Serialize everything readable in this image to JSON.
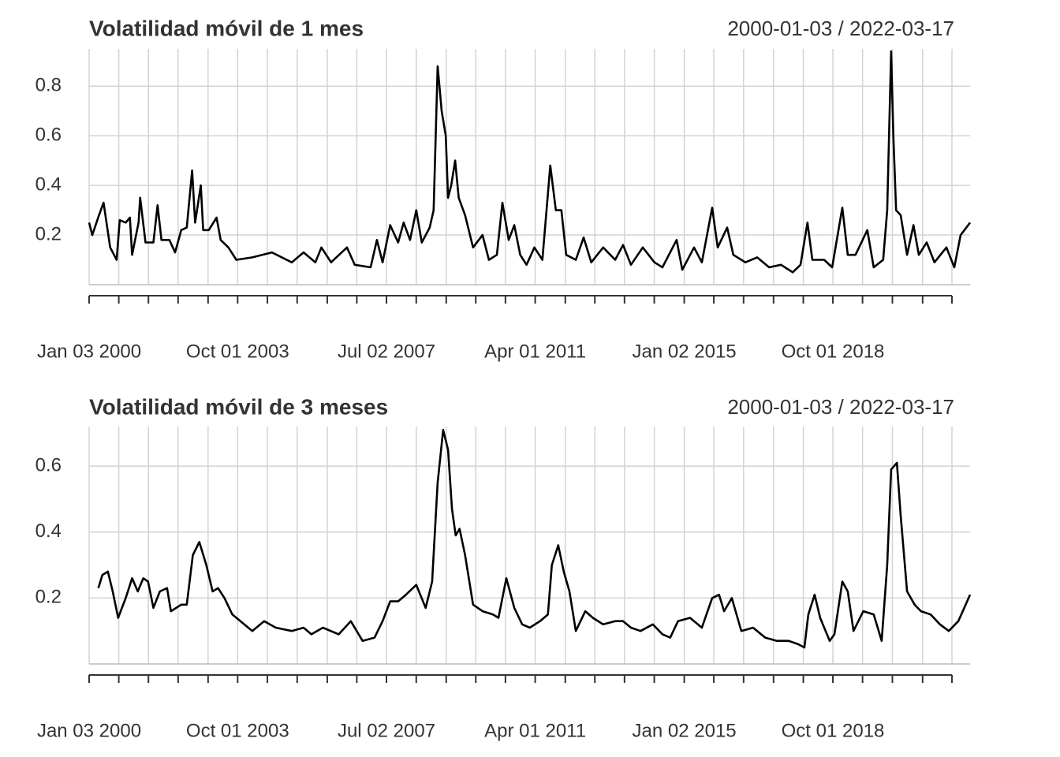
{
  "chart_data": [
    {
      "type": "line",
      "title": "Volatilidad móvil de 1 mes",
      "date_range": "2000-01-03 / 2022-03-17",
      "color": "#000000",
      "grid": true,
      "xlim": [
        "2000-01-03",
        "2022-03-17"
      ],
      "ylim": [
        0,
        0.95
      ],
      "yticks": [
        0.2,
        0.4,
        0.6,
        0.8
      ],
      "xticks": [
        {
          "value": "2000-01-03",
          "label": "Jan 03 2000"
        },
        {
          "value": "2000-10-02",
          "label": null
        },
        {
          "value": "2001-07-02",
          "label": null
        },
        {
          "value": "2002-04-01",
          "label": null
        },
        {
          "value": "2003-01-02",
          "label": null
        },
        {
          "value": "2003-10-01",
          "label": "Oct 01 2003"
        },
        {
          "value": "2004-07-01",
          "label": null
        },
        {
          "value": "2005-04-01",
          "label": null
        },
        {
          "value": "2006-01-03",
          "label": null
        },
        {
          "value": "2006-10-02",
          "label": null
        },
        {
          "value": "2007-07-02",
          "label": "Jul 02 2007"
        },
        {
          "value": "2008-04-01",
          "label": null
        },
        {
          "value": "2009-01-02",
          "label": null
        },
        {
          "value": "2009-10-01",
          "label": null
        },
        {
          "value": "2010-07-01",
          "label": null
        },
        {
          "value": "2011-04-01",
          "label": "Apr 01 2011"
        },
        {
          "value": "2012-01-03",
          "label": null
        },
        {
          "value": "2012-10-01",
          "label": null
        },
        {
          "value": "2013-07-01",
          "label": null
        },
        {
          "value": "2014-04-01",
          "label": null
        },
        {
          "value": "2015-01-02",
          "label": "Jan 02 2015"
        },
        {
          "value": "2015-10-01",
          "label": null
        },
        {
          "value": "2016-07-01",
          "label": null
        },
        {
          "value": "2017-04-03",
          "label": null
        },
        {
          "value": "2018-01-02",
          "label": null
        },
        {
          "value": "2018-10-01",
          "label": "Oct 01 2018"
        },
        {
          "value": "2019-07-01",
          "label": null
        },
        {
          "value": "2020-04-01",
          "label": null
        },
        {
          "value": "2021-01-04",
          "label": null
        },
        {
          "value": "2021-10-01",
          "label": null
        }
      ],
      "x": [
        "2000-01-03",
        "2000-02-01",
        "2000-04-03",
        "2000-05-15",
        "2000-07-15",
        "2000-09-12",
        "2000-10-11",
        "2000-12-05",
        "2001-01-12",
        "2001-02-02",
        "2001-04-02",
        "2001-04-17",
        "2001-06-05",
        "2001-08-17",
        "2001-09-24",
        "2001-10-30",
        "2002-01-11",
        "2002-03-04",
        "2002-04-30",
        "2002-06-20",
        "2002-08-08",
        "2002-09-05",
        "2002-10-27",
        "2002-11-18",
        "2003-01-08",
        "2003-03-21",
        "2003-04-28",
        "2003-07-08",
        "2003-09-19",
        "2004-02-13",
        "2004-08-12",
        "2005-02-10",
        "2005-05-30",
        "2005-09-16",
        "2005-11-10",
        "2006-02-07",
        "2006-07-03",
        "2006-09-13",
        "2007-02-06",
        "2007-04-05",
        "2007-05-27",
        "2007-08-05",
        "2007-10-17",
        "2007-12-07",
        "2008-02-04",
        "2008-04-01",
        "2008-05-22",
        "2008-08-03",
        "2008-09-08",
        "2008-10-15",
        "2008-11-21",
        "2008-12-29",
        "2009-01-19",
        "2009-02-17",
        "2009-03-25",
        "2009-04-27",
        "2009-06-25",
        "2009-09-06",
        "2009-12-02",
        "2010-01-30",
        "2010-04-13",
        "2010-06-03",
        "2010-07-31",
        "2010-09-21",
        "2010-11-14",
        "2011-01-11",
        "2011-03-25",
        "2011-06-06",
        "2011-08-18",
        "2011-10-08",
        "2011-11-28",
        "2012-01-11",
        "2012-04-09",
        "2012-06-20",
        "2012-08-29",
        "2012-12-17",
        "2013-04-06",
        "2013-06-18",
        "2013-08-29",
        "2013-12-16",
        "2014-04-03",
        "2014-06-15",
        "2014-10-24",
        "2014-12-15",
        "2015-04-02",
        "2015-06-13",
        "2015-09-16",
        "2015-11-06",
        "2016-02-01",
        "2016-03-29",
        "2016-07-18",
        "2016-11-03",
        "2017-02-21",
        "2017-06-10",
        "2017-09-26",
        "2017-12-07",
        "2018-02-09",
        "2018-03-26",
        "2018-07-13",
        "2018-09-24",
        "2018-12-27",
        "2019-02-15",
        "2019-04-27",
        "2019-08-14",
        "2019-10-12",
        "2020-01-07",
        "2020-02-13",
        "2020-03-20",
        "2020-04-10",
        "2020-05-05",
        "2020-06-16",
        "2020-08-14",
        "2020-10-12",
        "2020-11-30",
        "2021-02-11",
        "2021-04-23",
        "2021-08-11",
        "2021-10-23",
        "2021-12-20",
        "2022-03-17"
      ],
      "values": [
        0.25,
        0.2,
        0.28,
        0.33,
        0.15,
        0.1,
        0.26,
        0.25,
        0.27,
        0.12,
        0.25,
        0.35,
        0.17,
        0.17,
        0.32,
        0.18,
        0.18,
        0.13,
        0.22,
        0.23,
        0.46,
        0.25,
        0.4,
        0.22,
        0.22,
        0.27,
        0.18,
        0.15,
        0.1,
        0.11,
        0.13,
        0.09,
        0.13,
        0.09,
        0.15,
        0.09,
        0.15,
        0.08,
        0.07,
        0.18,
        0.09,
        0.24,
        0.17,
        0.25,
        0.18,
        0.3,
        0.17,
        0.23,
        0.3,
        0.88,
        0.7,
        0.6,
        0.35,
        0.4,
        0.5,
        0.35,
        0.28,
        0.15,
        0.2,
        0.1,
        0.12,
        0.33,
        0.18,
        0.24,
        0.12,
        0.08,
        0.15,
        0.1,
        0.48,
        0.3,
        0.3,
        0.12,
        0.1,
        0.19,
        0.09,
        0.15,
        0.1,
        0.16,
        0.08,
        0.15,
        0.09,
        0.07,
        0.18,
        0.06,
        0.15,
        0.09,
        0.31,
        0.15,
        0.23,
        0.12,
        0.09,
        0.11,
        0.07,
        0.08,
        0.05,
        0.08,
        0.25,
        0.1,
        0.1,
        0.07,
        0.31,
        0.12,
        0.12,
        0.22,
        0.07,
        0.1,
        0.3,
        0.94,
        0.6,
        0.3,
        0.28,
        0.12,
        0.24,
        0.12,
        0.17,
        0.09,
        0.15,
        0.07,
        0.2,
        0.25
      ]
    },
    {
      "type": "line",
      "title": "Volatilidad móvil de 3 meses",
      "date_range": "2000-01-03 / 2022-03-17",
      "color": "#000000",
      "grid": true,
      "xlim": [
        "2000-01-03",
        "2022-03-17"
      ],
      "ylim": [
        0,
        0.72
      ],
      "yticks": [
        0.2,
        0.4,
        0.6
      ],
      "xticks": [
        {
          "value": "2000-01-03",
          "label": "Jan 03 2000"
        },
        {
          "value": "2000-10-02",
          "label": null
        },
        {
          "value": "2001-07-02",
          "label": null
        },
        {
          "value": "2002-04-01",
          "label": null
        },
        {
          "value": "2003-01-02",
          "label": null
        },
        {
          "value": "2003-10-01",
          "label": "Oct 01 2003"
        },
        {
          "value": "2004-07-01",
          "label": null
        },
        {
          "value": "2005-04-01",
          "label": null
        },
        {
          "value": "2006-01-03",
          "label": null
        },
        {
          "value": "2006-10-02",
          "label": null
        },
        {
          "value": "2007-07-02",
          "label": "Jul 02 2007"
        },
        {
          "value": "2008-04-01",
          "label": null
        },
        {
          "value": "2009-01-02",
          "label": null
        },
        {
          "value": "2009-10-01",
          "label": null
        },
        {
          "value": "2010-07-01",
          "label": null
        },
        {
          "value": "2011-04-01",
          "label": "Apr 01 2011"
        },
        {
          "value": "2012-01-03",
          "label": null
        },
        {
          "value": "2012-10-01",
          "label": null
        },
        {
          "value": "2013-07-01",
          "label": null
        },
        {
          "value": "2014-04-01",
          "label": null
        },
        {
          "value": "2015-01-02",
          "label": "Jan 02 2015"
        },
        {
          "value": "2015-10-01",
          "label": null
        },
        {
          "value": "2016-07-01",
          "label": null
        },
        {
          "value": "2017-04-03",
          "label": null
        },
        {
          "value": "2018-01-02",
          "label": null
        },
        {
          "value": "2018-10-01",
          "label": "Oct 01 2018"
        },
        {
          "value": "2019-07-01",
          "label": null
        },
        {
          "value": "2020-04-01",
          "label": null
        },
        {
          "value": "2021-01-04",
          "label": null
        },
        {
          "value": "2021-10-01",
          "label": null
        }
      ],
      "x": [
        "2000-03-28",
        "2000-05-04",
        "2000-06-24",
        "2000-08-07",
        "2000-09-26",
        "2000-12-05",
        "2001-02-02",
        "2001-03-26",
        "2001-05-16",
        "2001-06-28",
        "2001-08-17",
        "2001-10-15",
        "2001-12-20",
        "2002-01-25",
        "2002-04-30",
        "2002-06-20",
        "2002-08-15",
        "2002-10-13",
        "2002-12-17",
        "2003-02-13",
        "2003-04-04",
        "2003-06-02",
        "2003-08-13",
        "2003-12-01",
        "2004-02-13",
        "2004-06-01",
        "2004-09-16",
        "2005-02-10",
        "2005-05-30",
        "2005-08-10",
        "2005-11-24",
        "2006-04-19",
        "2006-08-08",
        "2006-11-24",
        "2007-03-14",
        "2007-05-27",
        "2007-08-05",
        "2007-10-17",
        "2007-12-28",
        "2008-04-01",
        "2008-06-27",
        "2008-08-25",
        "2008-10-15",
        "2008-12-05",
        "2009-01-19",
        "2009-02-24",
        "2009-03-30",
        "2009-05-05",
        "2009-06-25",
        "2009-09-06",
        "2009-12-02",
        "2010-03-08",
        "2010-04-28",
        "2010-07-09",
        "2010-09-21",
        "2010-12-02",
        "2011-02-10",
        "2011-05-16",
        "2011-07-27",
        "2011-09-01",
        "2011-10-30",
        "2011-12-20",
        "2012-02-10",
        "2012-04-09",
        "2012-07-05",
        "2012-09-13",
        "2012-12-17",
        "2013-04-06",
        "2013-06-18",
        "2013-08-29",
        "2013-11-25",
        "2014-03-19",
        "2014-06-15",
        "2014-08-26",
        "2014-11-06",
        "2015-02-24",
        "2015-06-13",
        "2015-09-16",
        "2015-11-18",
        "2016-01-04",
        "2016-03-15",
        "2016-06-10",
        "2016-09-27",
        "2017-01-16",
        "2017-05-04",
        "2017-08-19",
        "2017-11-14",
        "2018-01-12",
        "2018-02-17",
        "2018-04-16",
        "2018-06-06",
        "2018-09-02",
        "2018-10-15",
        "2018-12-27",
        "2019-02-15",
        "2019-04-09",
        "2019-07-08",
        "2019-10-12",
        "2019-12-24",
        "2020-02-13",
        "2020-03-20",
        "2020-05-12",
        "2020-06-16",
        "2020-08-14",
        "2020-10-23",
        "2020-12-20",
        "2021-03-19",
        "2021-06-13",
        "2021-09-02",
        "2021-11-29",
        "2022-03-17"
      ],
      "values": [
        0.23,
        0.27,
        0.28,
        0.22,
        0.14,
        0.2,
        0.26,
        0.22,
        0.26,
        0.25,
        0.17,
        0.22,
        0.23,
        0.16,
        0.18,
        0.18,
        0.33,
        0.37,
        0.3,
        0.22,
        0.23,
        0.2,
        0.15,
        0.12,
        0.1,
        0.13,
        0.11,
        0.1,
        0.11,
        0.09,
        0.11,
        0.09,
        0.13,
        0.07,
        0.08,
        0.13,
        0.19,
        0.19,
        0.21,
        0.24,
        0.17,
        0.25,
        0.55,
        0.71,
        0.65,
        0.47,
        0.39,
        0.41,
        0.33,
        0.18,
        0.16,
        0.15,
        0.14,
        0.26,
        0.17,
        0.12,
        0.11,
        0.13,
        0.15,
        0.3,
        0.36,
        0.28,
        0.22,
        0.1,
        0.16,
        0.14,
        0.12,
        0.13,
        0.13,
        0.11,
        0.1,
        0.12,
        0.09,
        0.08,
        0.13,
        0.14,
        0.11,
        0.2,
        0.21,
        0.16,
        0.2,
        0.1,
        0.11,
        0.08,
        0.07,
        0.07,
        0.06,
        0.05,
        0.15,
        0.21,
        0.14,
        0.07,
        0.09,
        0.25,
        0.22,
        0.1,
        0.16,
        0.15,
        0.07,
        0.3,
        0.59,
        0.61,
        0.45,
        0.22,
        0.18,
        0.16,
        0.15,
        0.12,
        0.1,
        0.13,
        0.21
      ]
    }
  ]
}
